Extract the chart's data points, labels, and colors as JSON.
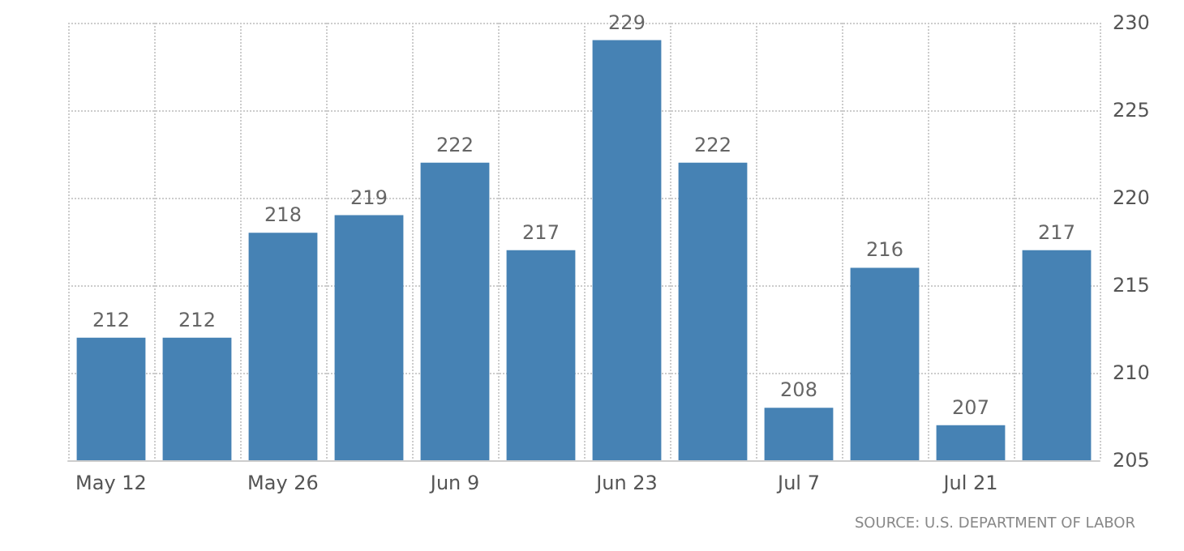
{
  "chart_data": {
    "type": "bar",
    "categories": [
      "May 12",
      null,
      "May 26",
      null,
      "Jun 9",
      null,
      "Jun 23",
      null,
      "Jul 7",
      null,
      "Jul 21",
      null
    ],
    "values": [
      212,
      212,
      218,
      219,
      222,
      217,
      229,
      222,
      208,
      216,
      207,
      217
    ],
    "color": "#4682b4",
    "ylim": [
      205,
      230
    ],
    "yticks": [
      205,
      210,
      215,
      220,
      225,
      230
    ],
    "grid": true,
    "data_labels": true,
    "annotations": [
      "SOURCE: U.S. DEPARTMENT OF LABOR"
    ]
  }
}
